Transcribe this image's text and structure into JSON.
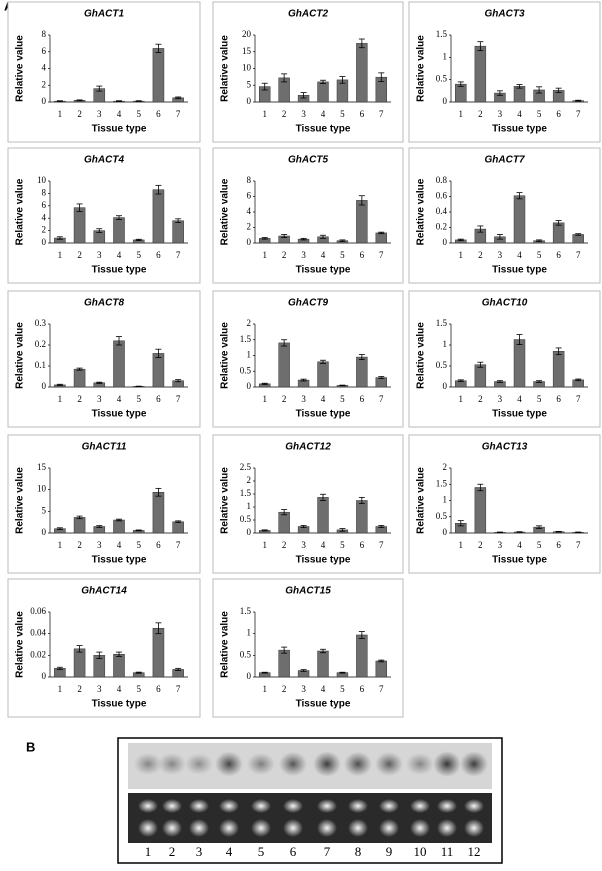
{
  "panel_labels": [
    "A",
    "B"
  ],
  "gel": {
    "lanes": [
      1,
      2,
      3,
      4,
      5,
      6,
      7,
      8,
      9,
      10,
      11,
      12
    ]
  },
  "chart_data": [
    {
      "type": "bar",
      "title": "GhACT1",
      "x_label": "Tissue type",
      "y_label": "Relative value",
      "categories": [
        1,
        2,
        3,
        4,
        5,
        6,
        7
      ],
      "values": [
        0.1,
        0.2,
        1.6,
        0.1,
        0.1,
        6.4,
        0.5
      ],
      "errors": [
        0.05,
        0.05,
        0.3,
        0.05,
        0.05,
        0.5,
        0.1
      ],
      "color": "#6e6e6e",
      "ylim": [
        0,
        8
      ],
      "yticks": [
        0,
        2,
        4,
        6,
        8
      ]
    },
    {
      "type": "bar",
      "title": "GhACT2",
      "x_label": "Tissue type",
      "y_label": "Relative value",
      "categories": [
        1,
        2,
        3,
        4,
        5,
        6,
        7
      ],
      "values": [
        4.6,
        7.2,
        2.0,
        6.0,
        6.6,
        17.5,
        7.4
      ],
      "errors": [
        1,
        1.2,
        0.8,
        0.5,
        1,
        1.3,
        1.3
      ],
      "color": "#6e6e6e",
      "ylim": [
        0,
        20
      ],
      "yticks": [
        0,
        5,
        10,
        15,
        20
      ]
    },
    {
      "type": "bar",
      "title": "GhACT3",
      "x_label": "Tissue type",
      "y_label": "Relative value",
      "categories": [
        1,
        2,
        3,
        4,
        5,
        6,
        7
      ],
      "values": [
        0.4,
        1.25,
        0.2,
        0.35,
        0.27,
        0.26,
        0.03
      ],
      "errors": [
        0.05,
        0.1,
        0.05,
        0.04,
        0.07,
        0.05,
        0.01
      ],
      "color": "#6e6e6e",
      "ylim": [
        0,
        1.5
      ],
      "yticks": [
        0,
        0.5,
        1,
        1.5
      ]
    },
    {
      "type": "bar",
      "title": "GhACT4",
      "x_label": "Tissue type",
      "y_label": "Relative value",
      "categories": [
        1,
        2,
        3,
        4,
        5,
        6,
        7
      ],
      "values": [
        0.8,
        5.7,
        2.0,
        4.1,
        0.5,
        8.6,
        3.6
      ],
      "errors": [
        0.2,
        0.6,
        0.3,
        0.3,
        0.1,
        0.7,
        0.3
      ],
      "color": "#6e6e6e",
      "ylim": [
        0,
        10
      ],
      "yticks": [
        0,
        2,
        4,
        6,
        8,
        10
      ]
    },
    {
      "type": "bar",
      "title": "GhACT5",
      "x_label": "Tissue type",
      "y_label": "Relative value",
      "categories": [
        1,
        2,
        3,
        4,
        5,
        6,
        7
      ],
      "values": [
        0.6,
        0.9,
        0.5,
        0.8,
        0.3,
        5.5,
        1.3
      ],
      "errors": [
        0.1,
        0.2,
        0.1,
        0.2,
        0.1,
        0.6,
        0.1
      ],
      "color": "#6e6e6e",
      "ylim": [
        0,
        8
      ],
      "yticks": [
        0,
        2,
        4,
        6,
        8
      ]
    },
    {
      "type": "bar",
      "title": "GhACT7",
      "x_label": "Tissue type",
      "y_label": "Relative value",
      "categories": [
        1,
        2,
        3,
        4,
        5,
        6,
        7
      ],
      "values": [
        0.04,
        0.18,
        0.08,
        0.61,
        0.03,
        0.26,
        0.11
      ],
      "errors": [
        0.01,
        0.04,
        0.03,
        0.04,
        0.01,
        0.03,
        0.01
      ],
      "color": "#6e6e6e",
      "ylim": [
        0,
        0.8
      ],
      "yticks": [
        0,
        0.2,
        0.4,
        0.6,
        0.8
      ]
    },
    {
      "type": "bar",
      "title": "GhACT8",
      "x_label": "Tissue type",
      "y_label": "Relative value",
      "categories": [
        1,
        2,
        3,
        4,
        5,
        6,
        7
      ],
      "values": [
        0.01,
        0.085,
        0.02,
        0.22,
        0.003,
        0.16,
        0.03
      ],
      "errors": [
        0.003,
        0.005,
        0.003,
        0.02,
        0.001,
        0.02,
        0.005
      ],
      "color": "#6e6e6e",
      "ylim": [
        0,
        0.3
      ],
      "yticks": [
        0,
        0.1,
        0.2,
        0.3
      ]
    },
    {
      "type": "bar",
      "title": "GhACT9",
      "x_label": "Tissue type",
      "y_label": "Relative value",
      "categories": [
        1,
        2,
        3,
        4,
        5,
        6,
        7
      ],
      "values": [
        0.1,
        1.4,
        0.22,
        0.8,
        0.05,
        0.95,
        0.3
      ],
      "errors": [
        0.02,
        0.1,
        0.03,
        0.05,
        0.01,
        0.08,
        0.03
      ],
      "color": "#6e6e6e",
      "ylim": [
        0,
        2
      ],
      "yticks": [
        0,
        0.5,
        1,
        1.5,
        2
      ]
    },
    {
      "type": "bar",
      "title": "GhACT10",
      "x_label": "Tissue type",
      "y_label": "Relative value",
      "categories": [
        1,
        2,
        3,
        4,
        5,
        6,
        7
      ],
      "values": [
        0.15,
        0.53,
        0.13,
        1.13,
        0.13,
        0.85,
        0.17
      ],
      "errors": [
        0.02,
        0.06,
        0.02,
        0.12,
        0.02,
        0.08,
        0.02
      ],
      "color": "#6e6e6e",
      "ylim": [
        0,
        1.5
      ],
      "yticks": [
        0,
        0.5,
        1,
        1.5
      ]
    },
    {
      "type": "bar",
      "title": "GhACT11",
      "x_label": "Tissue type",
      "y_label": "Relative value",
      "categories": [
        1,
        2,
        3,
        4,
        5,
        6,
        7
      ],
      "values": [
        1,
        3.6,
        1.5,
        3,
        0.6,
        9.4,
        2.6
      ],
      "errors": [
        0.2,
        0.3,
        0.2,
        0.2,
        0.1,
        0.9,
        0.2
      ],
      "color": "#6e6e6e",
      "ylim": [
        0,
        15
      ],
      "yticks": [
        0,
        5,
        10,
        15
      ]
    },
    {
      "type": "bar",
      "title": "GhACT12",
      "x_label": "Tissue type",
      "y_label": "Relative value",
      "categories": [
        1,
        2,
        3,
        4,
        5,
        6,
        7
      ],
      "values": [
        0.1,
        0.8,
        0.25,
        1.37,
        0.12,
        1.25,
        0.25
      ],
      "errors": [
        0.02,
        0.1,
        0.04,
        0.12,
        0.05,
        0.12,
        0.04
      ],
      "color": "#6e6e6e",
      "ylim": [
        0,
        2.5
      ],
      "yticks": [
        0,
        0.5,
        1,
        1.5,
        2,
        2.5
      ]
    },
    {
      "type": "bar",
      "title": "GhACT13",
      "x_label": "Tissue type",
      "y_label": "Relative value",
      "categories": [
        1,
        2,
        3,
        4,
        5,
        6,
        7
      ],
      "values": [
        0.3,
        1.4,
        0.02,
        0.03,
        0.18,
        0.04,
        0.02
      ],
      "errors": [
        0.08,
        0.1,
        0.01,
        0.01,
        0.04,
        0.01,
        0.01
      ],
      "color": "#6e6e6e",
      "ylim": [
        0,
        2
      ],
      "yticks": [
        0,
        0.5,
        1,
        1.5,
        2
      ]
    },
    {
      "type": "bar",
      "title": "GhACT14",
      "x_label": "Tissue type",
      "y_label": "Relative value",
      "categories": [
        1,
        2,
        3,
        4,
        5,
        6,
        7
      ],
      "values": [
        0.008,
        0.026,
        0.02,
        0.021,
        0.004,
        0.045,
        0.007
      ],
      "errors": [
        0.001,
        0.003,
        0.003,
        0.002,
        0.0005,
        0.005,
        0.001
      ],
      "color": "#6e6e6e",
      "ylim": [
        0,
        0.06
      ],
      "yticks": [
        0,
        0.02,
        0.04,
        0.06
      ]
    },
    {
      "type": "bar",
      "title": "GhACT15",
      "x_label": "Tissue type",
      "y_label": "Relative value",
      "categories": [
        1,
        2,
        3,
        4,
        5,
        6,
        7
      ],
      "values": [
        0.1,
        0.62,
        0.15,
        0.6,
        0.1,
        0.97,
        0.37
      ],
      "errors": [
        0.01,
        0.07,
        0.02,
        0.04,
        0.01,
        0.08,
        0.02
      ],
      "color": "#6e6e6e",
      "ylim": [
        0,
        1.5
      ],
      "yticks": [
        0,
        0.5,
        1,
        1.5
      ]
    }
  ]
}
